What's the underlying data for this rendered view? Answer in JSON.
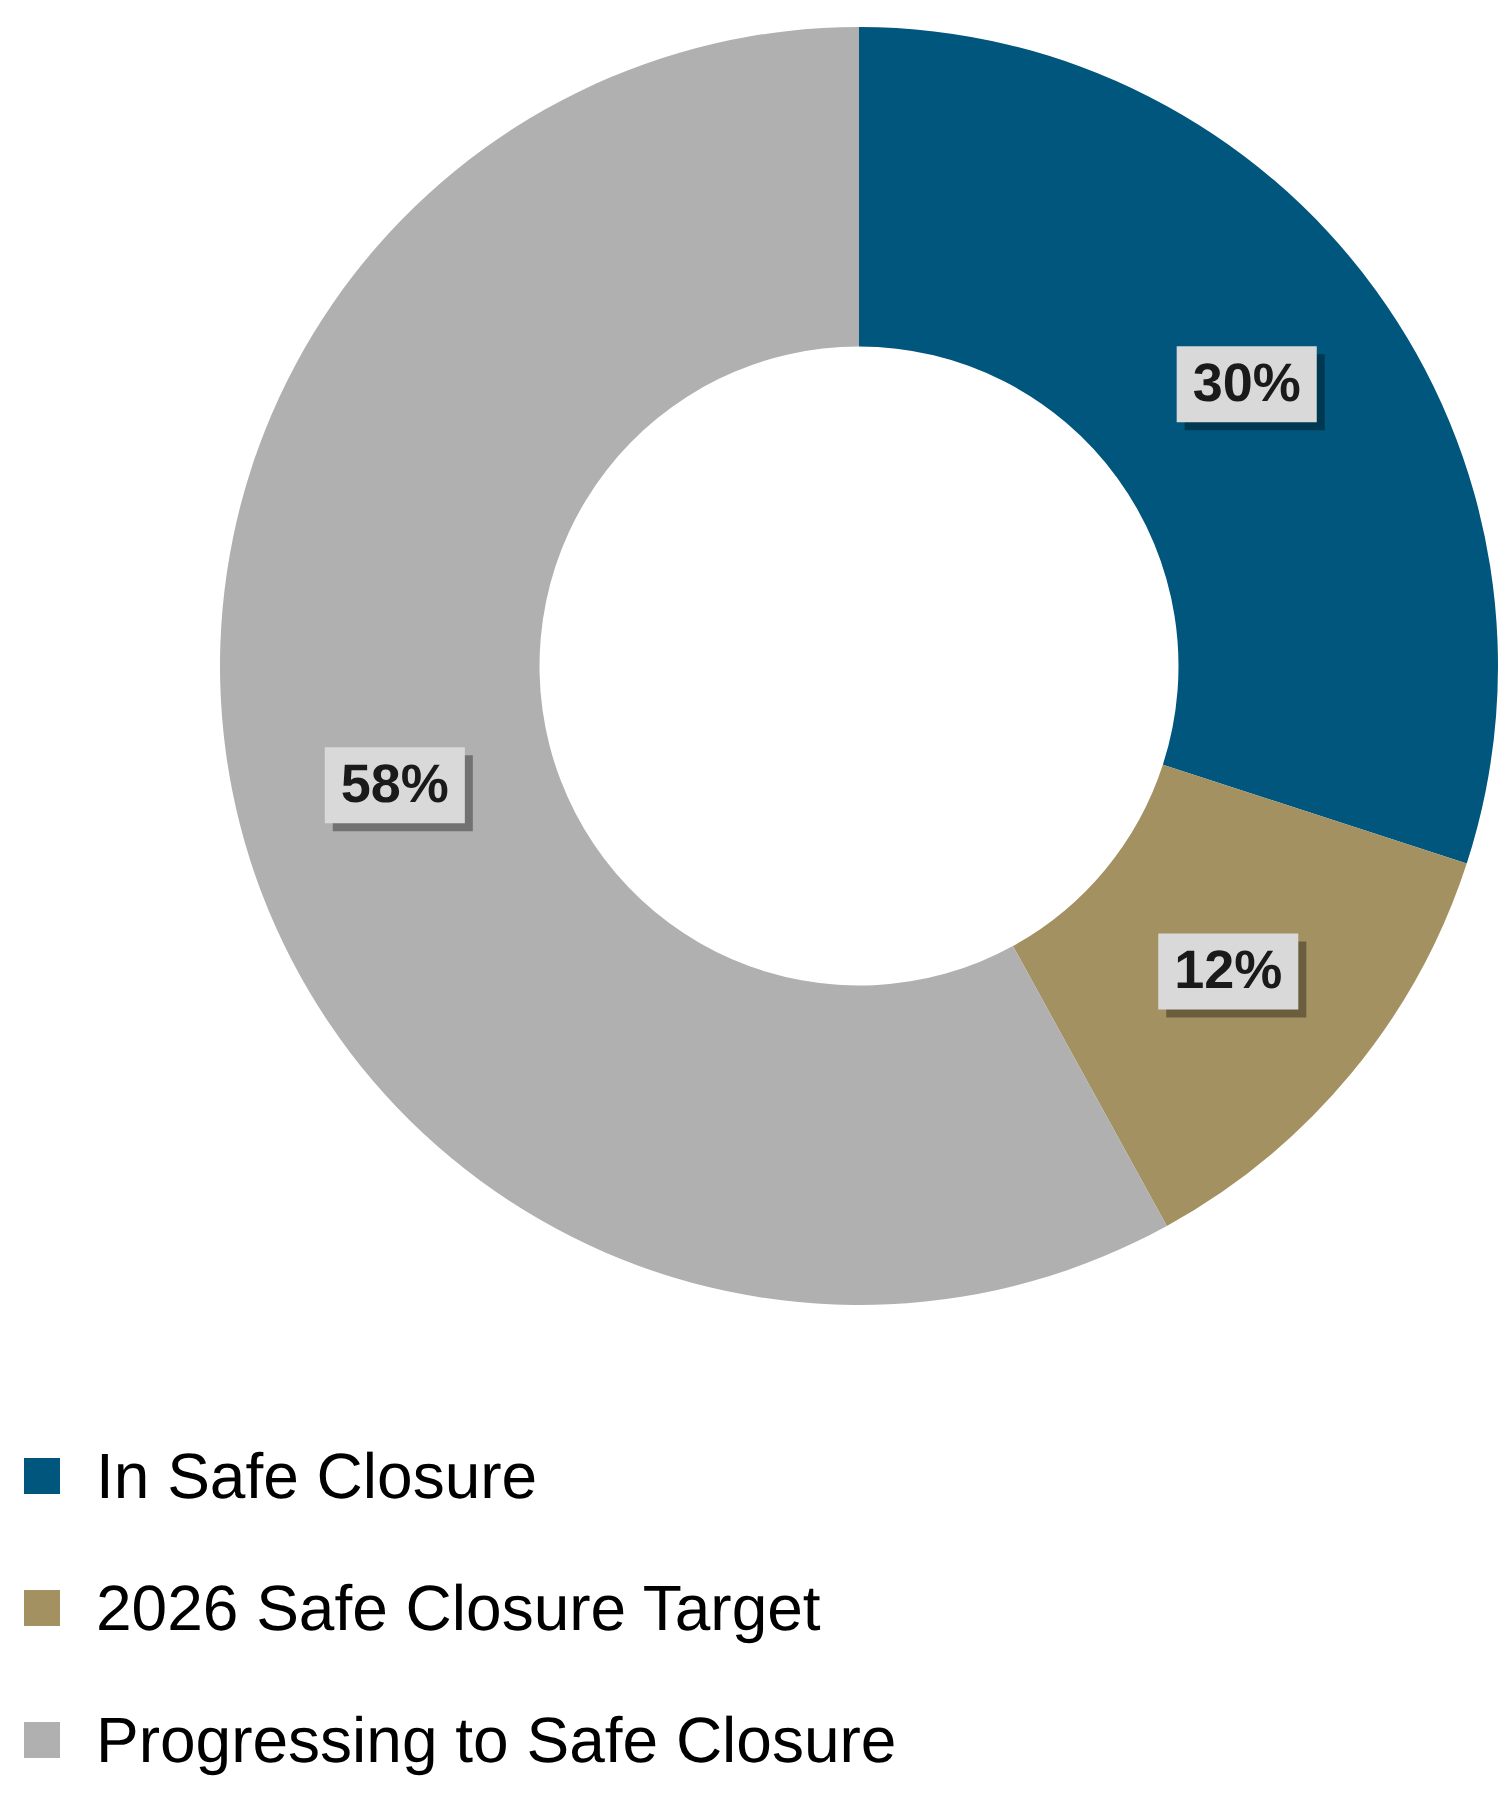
{
  "chart_data": {
    "type": "donut",
    "categories": [
      "In Safe Closure",
      "2026 Safe Closure Target",
      "Progressing to Safe Closure"
    ],
    "values": [
      30,
      12,
      58
    ],
    "colors": [
      "#00567d",
      "#a39161",
      "#b0b0b0"
    ],
    "value_labels": [
      "30%",
      "12%",
      "58%"
    ],
    "legend": "bottom"
  }
}
